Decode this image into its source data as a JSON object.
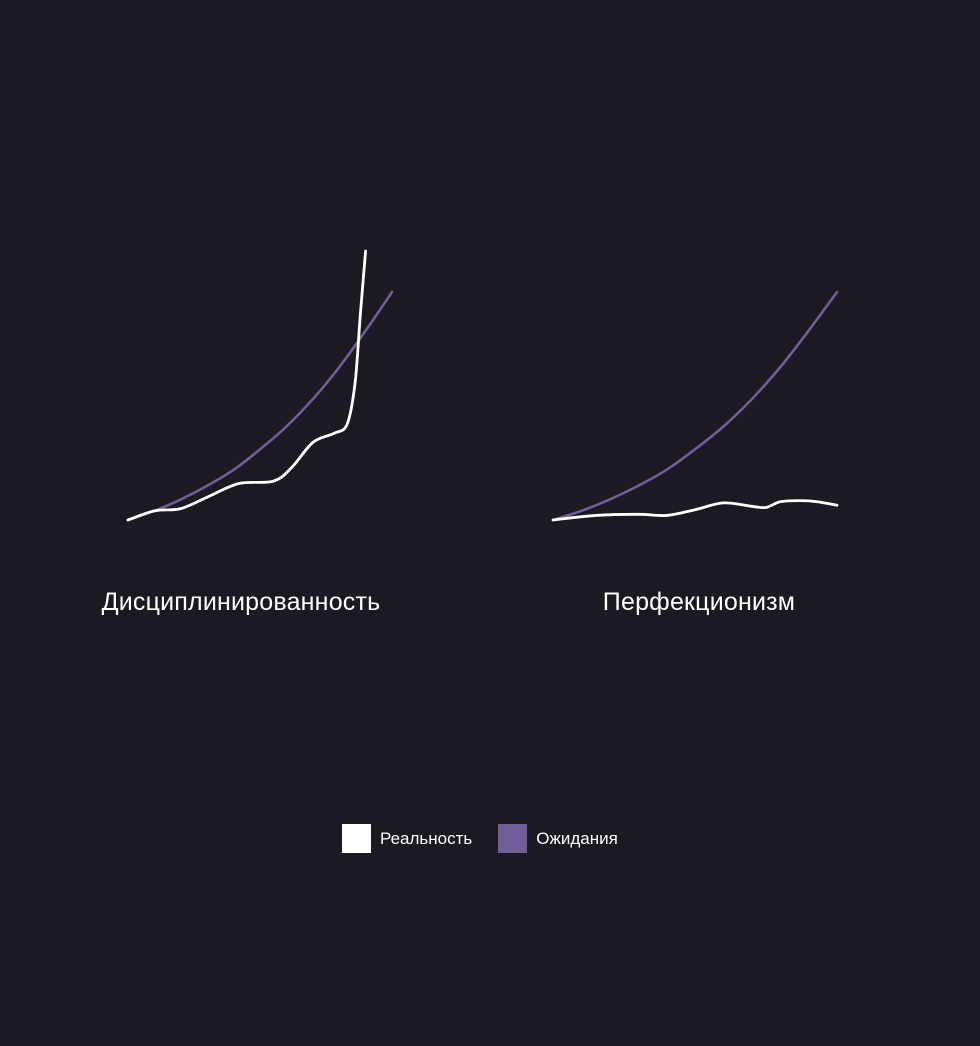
{
  "colors": {
    "background": "#1d1922",
    "reality": "#ffffff",
    "expectations": "#6f5f96"
  },
  "legend": {
    "reality_label": "Реальность",
    "expectations_label": "Ожидания"
  },
  "chart_data": [
    {
      "type": "line",
      "title": "Дисциплинированность",
      "xlim": [
        0,
        1
      ],
      "ylim": [
        0,
        1
      ],
      "series": [
        {
          "name": "Ожидания",
          "color": "#6f5f96",
          "x": [
            0,
            0.1,
            0.2,
            0.3,
            0.4,
            0.5,
            0.6,
            0.7,
            0.8,
            0.9,
            1.0
          ],
          "y": [
            0,
            0.04,
            0.09,
            0.15,
            0.22,
            0.31,
            0.41,
            0.53,
            0.67,
            0.83,
            1.0
          ]
        },
        {
          "name": "Реальность",
          "color": "#ffffff",
          "x": [
            0,
            0.1,
            0.2,
            0.3,
            0.42,
            0.55,
            0.62,
            0.7,
            0.78,
            0.83,
            0.86,
            0.88,
            0.9
          ],
          "y": [
            0,
            0.04,
            0.05,
            0.1,
            0.16,
            0.17,
            0.23,
            0.34,
            0.38,
            0.42,
            0.6,
            0.9,
            1.18
          ]
        }
      ]
    },
    {
      "type": "line",
      "title": "Перфекционизм",
      "xlim": [
        0,
        1
      ],
      "ylim": [
        0,
        1
      ],
      "series": [
        {
          "name": "Ожидания",
          "color": "#6f5f96",
          "x": [
            0,
            0.1,
            0.2,
            0.3,
            0.4,
            0.5,
            0.6,
            0.7,
            0.8,
            0.9,
            1.0
          ],
          "y": [
            0,
            0.04,
            0.09,
            0.15,
            0.22,
            0.31,
            0.41,
            0.53,
            0.67,
            0.83,
            1.0
          ]
        },
        {
          "name": "Реальность",
          "color": "#ffffff",
          "x": [
            0,
            0.15,
            0.3,
            0.4,
            0.5,
            0.6,
            0.7,
            0.75,
            0.8,
            0.87,
            0.93,
            1.0
          ],
          "y": [
            0,
            0.02,
            0.025,
            0.02,
            0.045,
            0.075,
            0.06,
            0.055,
            0.08,
            0.085,
            0.08,
            0.065
          ]
        }
      ]
    }
  ]
}
